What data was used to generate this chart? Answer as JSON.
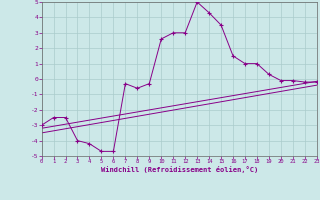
{
  "xlabel": "Windchill (Refroidissement éolien,°C)",
  "bg_color": "#cce8e8",
  "grid_color": "#aacccc",
  "line_color": "#880088",
  "xlim": [
    0,
    23
  ],
  "ylim": [
    -5,
    5
  ],
  "xticks": [
    0,
    1,
    2,
    3,
    4,
    5,
    6,
    7,
    8,
    9,
    10,
    11,
    12,
    13,
    14,
    15,
    16,
    17,
    18,
    19,
    20,
    21,
    22,
    23
  ],
  "yticks": [
    -5,
    -4,
    -3,
    -2,
    -1,
    0,
    1,
    2,
    3,
    4,
    5
  ],
  "line1_x": [
    0,
    1,
    2,
    3,
    4,
    5,
    6,
    7,
    8,
    9,
    10,
    11,
    12,
    13,
    14,
    15,
    16,
    17,
    18,
    19,
    20,
    21,
    22,
    23
  ],
  "line1_y": [
    -3.0,
    -2.5,
    -2.5,
    -4.0,
    -4.2,
    -4.7,
    -4.7,
    -0.3,
    -0.6,
    -0.3,
    2.6,
    3.0,
    3.0,
    5.0,
    4.3,
    3.5,
    1.5,
    1.0,
    1.0,
    0.3,
    -0.1,
    -0.1,
    -0.2,
    -0.2
  ],
  "line2_x": [
    0,
    23
  ],
  "line2_y": [
    -3.2,
    -0.15
  ],
  "line3_x": [
    0,
    23
  ],
  "line3_y": [
    -3.5,
    -0.4
  ],
  "figwidth": 3.2,
  "figheight": 2.0,
  "dpi": 100
}
